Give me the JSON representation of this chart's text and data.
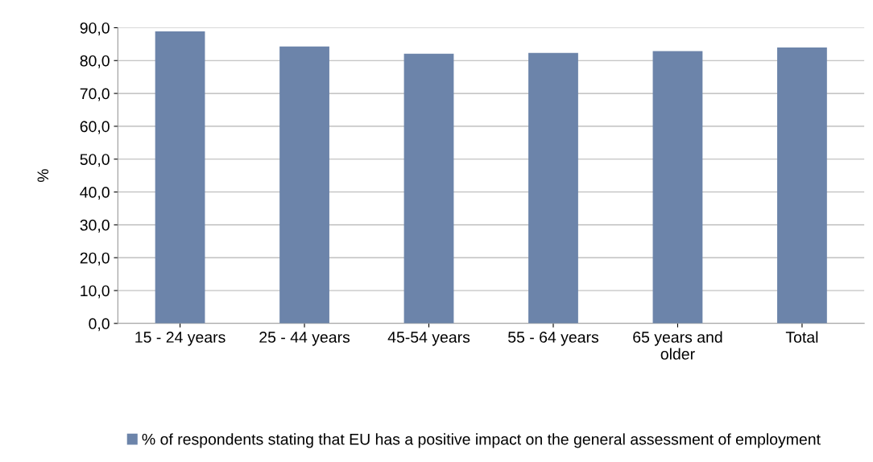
{
  "chart_data": {
    "type": "bar",
    "ylabel": "%",
    "categories": [
      "15 - 24 years",
      "25 - 44 years",
      "45-54 years",
      "55 - 64 years",
      "65 years and\nolder",
      "Total"
    ],
    "series": [
      {
        "name": "% of respondents stating that EU has a positive impact on the general assessment of employment",
        "color": "#6c84aa",
        "values": [
          88.9,
          84.3,
          82.1,
          82.3,
          82.9,
          84.0
        ]
      }
    ],
    "ylim": [
      0,
      90
    ],
    "yticks": [
      {
        "value": 0,
        "label": "0,0"
      },
      {
        "value": 10,
        "label": "10,0"
      },
      {
        "value": 20,
        "label": "20,0"
      },
      {
        "value": 30,
        "label": "30,0"
      },
      {
        "value": 40,
        "label": "40,0"
      },
      {
        "value": 50,
        "label": "50,0"
      },
      {
        "value": 60,
        "label": "60,0"
      },
      {
        "value": 70,
        "label": "70,0"
      },
      {
        "value": 80,
        "label": "80,0"
      },
      {
        "value": 90,
        "label": "90,0"
      }
    ],
    "grid": "y",
    "legend": "bottom"
  }
}
